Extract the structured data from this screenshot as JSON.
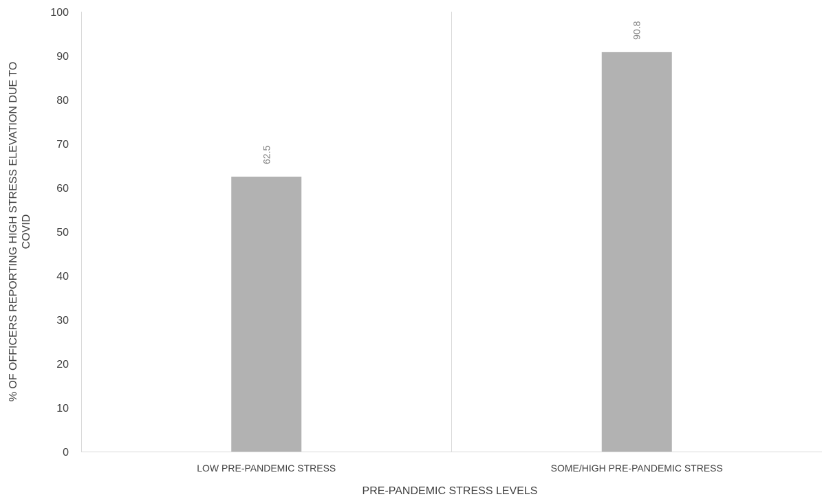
{
  "chart_data": {
    "type": "bar",
    "categories": [
      "LOW PRE-PANDEMIC STRESS",
      "SOME/HIGH PRE-PANDEMIC STRESS"
    ],
    "series": [
      {
        "values": [
          62.5,
          90.8
        ],
        "color": "#b2b2b2"
      }
    ],
    "data_labels": [
      "62.5",
      "90.8"
    ],
    "xlabel": "PRE-PANDEMIC STRESS LEVELS",
    "ylabel_lines": [
      "% OF OFFICERS REPORTING HIGH STRESS ELEVATION DUE TO",
      "COVID"
    ],
    "ylim": [
      0,
      100
    ],
    "yticks": [
      0,
      10,
      20,
      30,
      40,
      50,
      60,
      70,
      80,
      90,
      100
    ],
    "grid": false,
    "legend": "none"
  }
}
